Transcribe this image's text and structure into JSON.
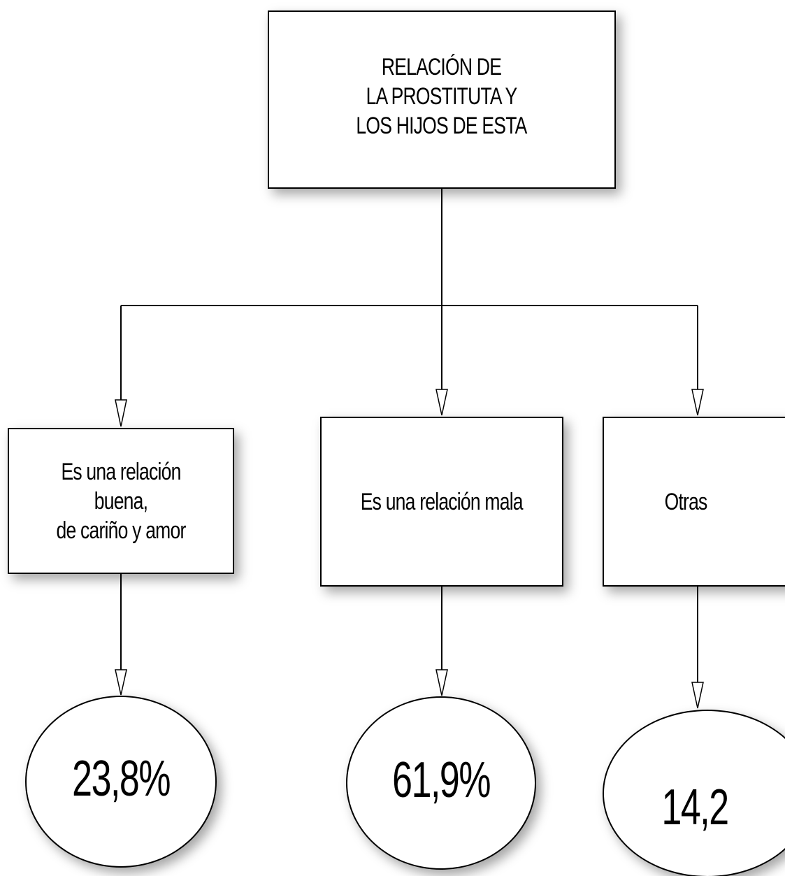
{
  "diagram": {
    "root": {
      "label": "RELACIÓN DE\nLA PROSTITUTA Y\nLOS HIJOS DE ESTA"
    },
    "branches": [
      {
        "label": "Es una relación buena,\nde cariño y amor",
        "value": "23,8%"
      },
      {
        "label": "Es una relación mala",
        "value": "61,9%"
      },
      {
        "label": "Otras",
        "value": "14,2"
      }
    ],
    "colors": {
      "stroke": "#000000",
      "fill": "#ffffff"
    }
  }
}
